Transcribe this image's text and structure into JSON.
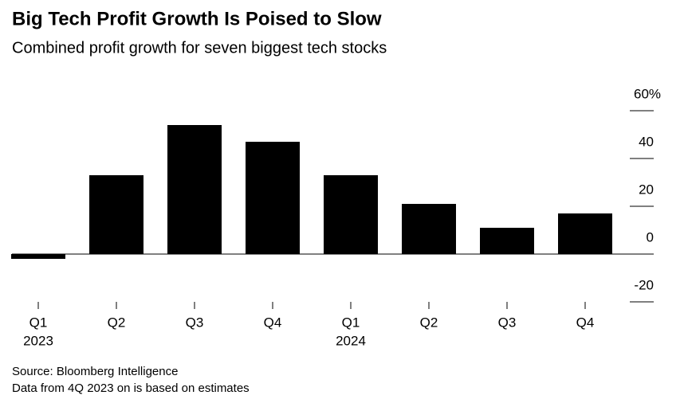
{
  "chart_data": {
    "type": "bar",
    "title": "Big Tech Profit Growth Is Poised to Slow",
    "subtitle": "Combined profit growth for seven biggest tech stocks",
    "categories": [
      "Q1",
      "Q2",
      "Q3",
      "Q4",
      "Q1",
      "Q2",
      "Q3",
      "Q4"
    ],
    "years": [
      "2023",
      null,
      null,
      null,
      "2024",
      null,
      null,
      null
    ],
    "values": [
      -2,
      33,
      54,
      47,
      33,
      21,
      11,
      17
    ],
    "color": "#000000",
    "ylim": [
      -20,
      60
    ],
    "yticks": [
      {
        "value": 60,
        "label": "60%"
      },
      40,
      20,
      0,
      -20
    ],
    "source": "Source: Bloomberg Intelligence",
    "note": "Data from 4Q 2023 on is based on estimates"
  }
}
